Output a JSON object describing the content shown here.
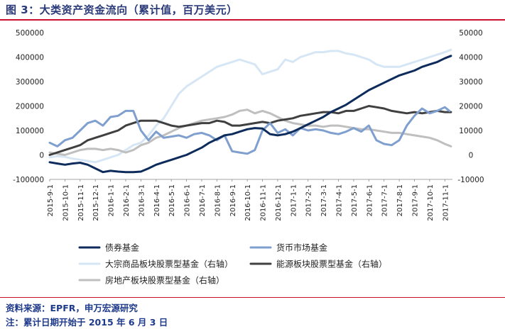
{
  "header": {
    "title": "图 3：大类资产资金流向（累计值，百万美元）"
  },
  "footer": {
    "source": "资料来源：EPFR，申万宏源研究",
    "footnote": "注：累计日期开始于 2015 年 6 月 3 日"
  },
  "colors": {
    "bond": "#0d2b5b",
    "money": "#7f9fcf",
    "commodity": "#d6e6f5",
    "energy": "#404040",
    "realestate": "#bfbfbf",
    "accent": "#c8102e",
    "title": "#2a3a78"
  },
  "chart_data": {
    "type": "line",
    "title": "大类资产资金流向（累计值，百万美元）",
    "x_labels": [
      "2015-9-1",
      "2015-10-1",
      "2015-11-1",
      "2015-12-1",
      "2016-1-1",
      "2016-2-1",
      "2016-3-1",
      "2016-4-1",
      "2016-5-1",
      "2016-6-1",
      "2016-7-1",
      "2016-8-1",
      "2016-9-1",
      "2016-10-1",
      "2016-11-1",
      "2016-12-1",
      "2017-1-1",
      "2017-2-1",
      "2017-3-1",
      "2017-4-1",
      "2017-5-1",
      "2017-6-1",
      "2017-7-1",
      "2017-8-1",
      "2017-9-1",
      "2017-10-1",
      "2017-11-1"
    ],
    "x_range": [
      0,
      26.5
    ],
    "y_left": {
      "min": -100000,
      "max": 500000,
      "ticks": [
        -100000,
        0,
        100000,
        200000,
        300000,
        400000,
        500000
      ],
      "tick_labels": [
        "-100000",
        "0",
        "100000",
        "200000",
        "300000",
        "400000",
        "500000"
      ]
    },
    "y_right": {
      "min": -10000,
      "max": 50000,
      "ticks": [
        -10000,
        0,
        10000,
        20000,
        30000,
        40000,
        50000
      ],
      "tick_labels": [
        "-10000",
        "0",
        "10000",
        "20000",
        "30000",
        "40000",
        "50000"
      ]
    },
    "series": [
      {
        "key": "bond",
        "name": "债券基金",
        "axis": "left",
        "x": [
          0,
          0.5,
          1,
          1.5,
          2,
          2.5,
          3,
          3.5,
          4,
          4.5,
          5,
          5.5,
          6,
          6.5,
          7,
          7.5,
          8,
          8.5,
          9,
          9.5,
          10,
          10.5,
          11,
          11.5,
          12,
          12.5,
          13,
          13.5,
          14,
          14.5,
          15,
          15.5,
          16,
          16.5,
          17,
          17.5,
          18,
          18.5,
          19,
          19.5,
          20,
          20.5,
          21,
          21.5,
          22,
          22.5,
          23,
          23.5,
          24,
          24.5,
          25,
          25.5,
          26,
          26.4
        ],
        "y": [
          -30000,
          -35000,
          -40000,
          -35000,
          -32000,
          -40000,
          -55000,
          -70000,
          -65000,
          -68000,
          -70000,
          -70000,
          -68000,
          -55000,
          -40000,
          -30000,
          -20000,
          -10000,
          0,
          15000,
          30000,
          50000,
          65000,
          80000,
          85000,
          95000,
          105000,
          110000,
          108000,
          85000,
          80000,
          85000,
          95000,
          110000,
          125000,
          140000,
          155000,
          175000,
          190000,
          205000,
          225000,
          245000,
          265000,
          280000,
          295000,
          310000,
          325000,
          335000,
          345000,
          360000,
          370000,
          380000,
          395000,
          405000
        ]
      },
      {
        "key": "money",
        "name": "货币市场基金",
        "axis": "left",
        "x": [
          0,
          0.5,
          1,
          1.5,
          2,
          2.5,
          3,
          3.5,
          4,
          4.5,
          5,
          5.5,
          6,
          6.5,
          7,
          7.5,
          8,
          8.5,
          9,
          9.5,
          10,
          10.5,
          11,
          11.5,
          12,
          12.5,
          13,
          13.5,
          14,
          14.5,
          15,
          15.5,
          16,
          16.5,
          17,
          17.5,
          18,
          18.5,
          19,
          19.5,
          20,
          20.5,
          21,
          21.5,
          22,
          22.5,
          23,
          23.5,
          24,
          24.5,
          25,
          25.5,
          26,
          26.3
        ],
        "y": [
          50000,
          35000,
          60000,
          70000,
          100000,
          130000,
          140000,
          120000,
          155000,
          160000,
          180000,
          180000,
          100000,
          60000,
          95000,
          70000,
          75000,
          80000,
          70000,
          85000,
          90000,
          80000,
          60000,
          80000,
          15000,
          10000,
          5000,
          20000,
          100000,
          130000,
          90000,
          105000,
          80000,
          110000,
          100000,
          105000,
          100000,
          90000,
          85000,
          95000,
          110000,
          95000,
          120000,
          60000,
          45000,
          40000,
          60000,
          120000,
          160000,
          190000,
          170000,
          180000,
          195000,
          180000
        ]
      },
      {
        "key": "commodity",
        "name": "大宗商品板块股票型基金（右轴）",
        "axis": "right",
        "x": [
          0,
          0.5,
          1,
          1.5,
          2,
          2.5,
          3,
          3.5,
          4,
          4.5,
          5,
          5.5,
          6,
          6.5,
          7,
          7.5,
          8,
          8.5,
          9,
          9.5,
          10,
          10.5,
          11,
          11.5,
          12,
          12.5,
          13,
          13.5,
          14,
          14.5,
          15,
          15.5,
          16,
          16.5,
          17,
          17.5,
          18,
          18.5,
          19,
          19.5,
          20,
          20.5,
          21,
          21.5,
          22,
          22.5,
          23,
          23.5,
          24,
          24.5,
          25,
          25.5,
          26,
          26.4
        ],
        "y": [
          -1000,
          -500,
          -800,
          -1500,
          -2000,
          -2500,
          -3000,
          -2000,
          -1000,
          0,
          2000,
          4000,
          5000,
          8000,
          12000,
          15000,
          20000,
          25000,
          28000,
          30000,
          32000,
          34000,
          36000,
          37000,
          38000,
          39000,
          38000,
          37000,
          33000,
          34000,
          35000,
          39000,
          38000,
          40000,
          41000,
          42000,
          42000,
          42500,
          42500,
          41500,
          41000,
          40000,
          39000,
          37000,
          36000,
          36000,
          36000,
          37000,
          38000,
          39000,
          40000,
          41000,
          42000,
          43000
        ]
      },
      {
        "key": "energy",
        "name": "能源板块股票型基金（右轴）",
        "axis": "right",
        "x": [
          0,
          0.5,
          1,
          1.5,
          2,
          2.5,
          3,
          3.5,
          4,
          4.5,
          5,
          5.5,
          6,
          6.5,
          7,
          7.5,
          8,
          8.5,
          9,
          9.5,
          10,
          10.5,
          11,
          11.5,
          12,
          12.5,
          13,
          13.5,
          14,
          14.5,
          15,
          15.5,
          16,
          16.5,
          17,
          17.5,
          18,
          18.5,
          19,
          19.5,
          20,
          20.5,
          21,
          21.5,
          22,
          22.5,
          23,
          23.5,
          24,
          24.5,
          25,
          25.5,
          26,
          26.4
        ],
        "y": [
          0,
          1000,
          2000,
          3000,
          4000,
          6000,
          7000,
          8000,
          9000,
          10000,
          12000,
          13000,
          14000,
          14000,
          14000,
          13000,
          12000,
          11500,
          12000,
          12500,
          13000,
          13000,
          14000,
          13500,
          12000,
          12000,
          12500,
          13000,
          13500,
          13000,
          14000,
          14500,
          15000,
          16000,
          16500,
          17000,
          17500,
          17500,
          17000,
          18000,
          18000,
          19000,
          20000,
          19500,
          19000,
          18000,
          17500,
          17000,
          17500,
          17000,
          17500,
          18000,
          17500,
          17500
        ]
      },
      {
        "key": "realestate",
        "name": "房地产板块股票型基金（右轴）",
        "axis": "right",
        "x": [
          0,
          0.5,
          1,
          1.5,
          2,
          2.5,
          3,
          3.5,
          4,
          4.5,
          5,
          5.5,
          6,
          6.5,
          7,
          7.5,
          8,
          8.5,
          9,
          9.5,
          10,
          10.5,
          11,
          11.5,
          12,
          12.5,
          13,
          13.5,
          14,
          14.5,
          15,
          15.5,
          16,
          16.5,
          17,
          17.5,
          18,
          18.5,
          19,
          19.5,
          20,
          20.5,
          21,
          21.5,
          22,
          22.5,
          23,
          23.5,
          24,
          24.5,
          25,
          25.5,
          26,
          26.4
        ],
        "y": [
          1000,
          500,
          0,
          1000,
          2000,
          2500,
          2500,
          2000,
          2500,
          2000,
          1000,
          2000,
          4000,
          5000,
          7000,
          8000,
          9500,
          11000,
          12000,
          13000,
          14000,
          14500,
          15000,
          15500,
          16500,
          18000,
          18500,
          17000,
          18000,
          17000,
          15500,
          14000,
          13000,
          12500,
          12000,
          12000,
          11500,
          12000,
          12000,
          11500,
          11000,
          10500,
          10500,
          10000,
          9500,
          9000,
          9000,
          8500,
          8000,
          7500,
          7000,
          6000,
          4500,
          3500
        ]
      }
    ],
    "legend": [
      {
        "key": "bond",
        "label": "债券基金"
      },
      {
        "key": "money",
        "label": "货币市场基金"
      },
      {
        "key": "commodity",
        "label": "大宗商品板块股票型基金（右轴）"
      },
      {
        "key": "energy",
        "label": "能源板块股票型基金（右轴）"
      },
      {
        "key": "realestate",
        "label": "房地产板块股票型基金（右轴）"
      }
    ],
    "legend_position": "bottom"
  }
}
